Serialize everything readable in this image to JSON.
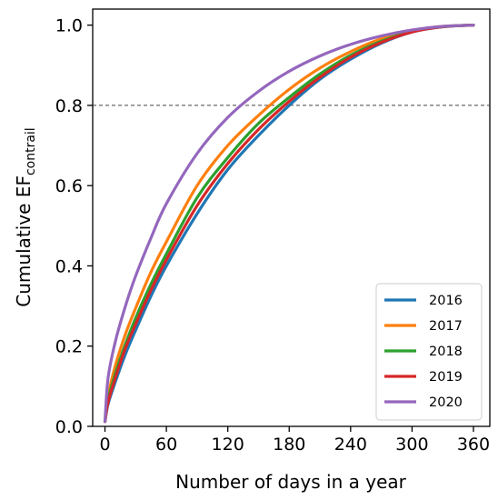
{
  "chart_data": {
    "type": "line",
    "title": "",
    "xlabel": "Number of days in a year",
    "ylabel": {
      "main": "Cumulative EF",
      "subscript": "contrail"
    },
    "xlim": [
      -12,
      376
    ],
    "ylim": [
      0,
      1.04
    ],
    "xticks": [
      0,
      60,
      120,
      180,
      240,
      300,
      360
    ],
    "xtick_labels": [
      "0",
      "60",
      "120",
      "180",
      "240",
      "300",
      "360"
    ],
    "yticks": [
      0.0,
      0.2,
      0.4,
      0.6,
      0.8,
      1.0
    ],
    "ytick_labels": [
      "0.0",
      "0.2",
      "0.4",
      "0.6",
      "0.8",
      "1.0"
    ],
    "grid": false,
    "legend_position": "bottom-right",
    "reference_line": {
      "y": 0.8,
      "style": "dashed",
      "color": "#444444"
    },
    "series": [
      {
        "name": "2016",
        "color": "#1f77b4",
        "x": [
          0,
          3,
          10,
          20,
          30,
          45,
          60,
          90,
          120,
          150,
          180,
          210,
          240,
          270,
          300,
          330,
          360
        ],
        "y": [
          0.012,
          0.055,
          0.11,
          0.18,
          0.24,
          0.325,
          0.4,
          0.53,
          0.64,
          0.725,
          0.8,
          0.865,
          0.915,
          0.955,
          0.983,
          0.996,
          1.0
        ]
      },
      {
        "name": "2017",
        "color": "#ff7f0e",
        "x": [
          0,
          3,
          10,
          20,
          30,
          45,
          60,
          90,
          120,
          150,
          180,
          210,
          240,
          270,
          300,
          330,
          360
        ],
        "y": [
          0.012,
          0.075,
          0.15,
          0.23,
          0.295,
          0.385,
          0.46,
          0.6,
          0.7,
          0.775,
          0.84,
          0.893,
          0.934,
          0.966,
          0.986,
          0.997,
          1.0
        ]
      },
      {
        "name": "2018",
        "color": "#2ca02c",
        "x": [
          0,
          3,
          10,
          20,
          30,
          45,
          60,
          90,
          120,
          150,
          180,
          210,
          240,
          270,
          300,
          330,
          360
        ],
        "y": [
          0.012,
          0.065,
          0.13,
          0.205,
          0.27,
          0.355,
          0.43,
          0.57,
          0.67,
          0.755,
          0.82,
          0.878,
          0.925,
          0.96,
          0.984,
          0.996,
          1.0
        ]
      },
      {
        "name": "2019",
        "color": "#d62728",
        "x": [
          0,
          3,
          10,
          20,
          30,
          45,
          60,
          90,
          120,
          150,
          180,
          210,
          240,
          270,
          300,
          330,
          360
        ],
        "y": [
          0.012,
          0.06,
          0.12,
          0.195,
          0.255,
          0.34,
          0.415,
          0.55,
          0.655,
          0.74,
          0.81,
          0.87,
          0.92,
          0.957,
          0.983,
          0.996,
          1.0
        ]
      },
      {
        "name": "2020",
        "color": "#9467bd",
        "x": [
          0,
          3,
          10,
          20,
          30,
          45,
          60,
          90,
          120,
          150,
          180,
          210,
          240,
          270,
          300,
          330,
          360
        ],
        "y": [
          0.012,
          0.12,
          0.21,
          0.3,
          0.375,
          0.47,
          0.555,
          0.68,
          0.77,
          0.835,
          0.885,
          0.923,
          0.952,
          0.973,
          0.988,
          0.997,
          1.0
        ]
      }
    ]
  }
}
